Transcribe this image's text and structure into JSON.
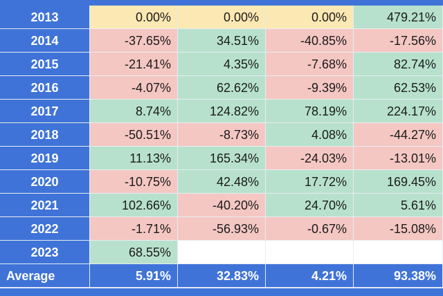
{
  "table": {
    "rows": [
      [
        "2013",
        "0.00%",
        "0.00%",
        "0.00%",
        "479.21%"
      ],
      [
        "2014",
        "-37.65%",
        "34.51%",
        "-40.85%",
        "-17.56%"
      ],
      [
        "2015",
        "-21.41%",
        "4.35%",
        "-7.68%",
        "82.74%"
      ],
      [
        "2016",
        "-4.07%",
        "62.62%",
        "-9.39%",
        "62.53%"
      ],
      [
        "2017",
        "8.74%",
        "124.82%",
        "78.19%",
        "224.17%"
      ],
      [
        "2018",
        "-50.51%",
        "-8.73%",
        "4.08%",
        "-44.27%"
      ],
      [
        "2019",
        "11.13%",
        "165.34%",
        "-24.03%",
        "-13.01%"
      ],
      [
        "2020",
        "-10.75%",
        "42.48%",
        "17.72%",
        "169.45%"
      ],
      [
        "2021",
        "102.66%",
        "-40.20%",
        "24.70%",
        "5.61%"
      ],
      [
        "2022",
        "-1.71%",
        "-56.93%",
        "-0.67%",
        "-15.08%"
      ],
      [
        "2023",
        "68.55%"
      ]
    ],
    "average": [
      "Average",
      "5.91%",
      "32.83%",
      "4.21%",
      "93.38%"
    ],
    "colors": {
      "negative": "#f4c7c3",
      "zero": "#fce8b2",
      "positive": "#b7e1cd",
      "empty": "#ffffff",
      "header": "#3f73d8"
    }
  }
}
